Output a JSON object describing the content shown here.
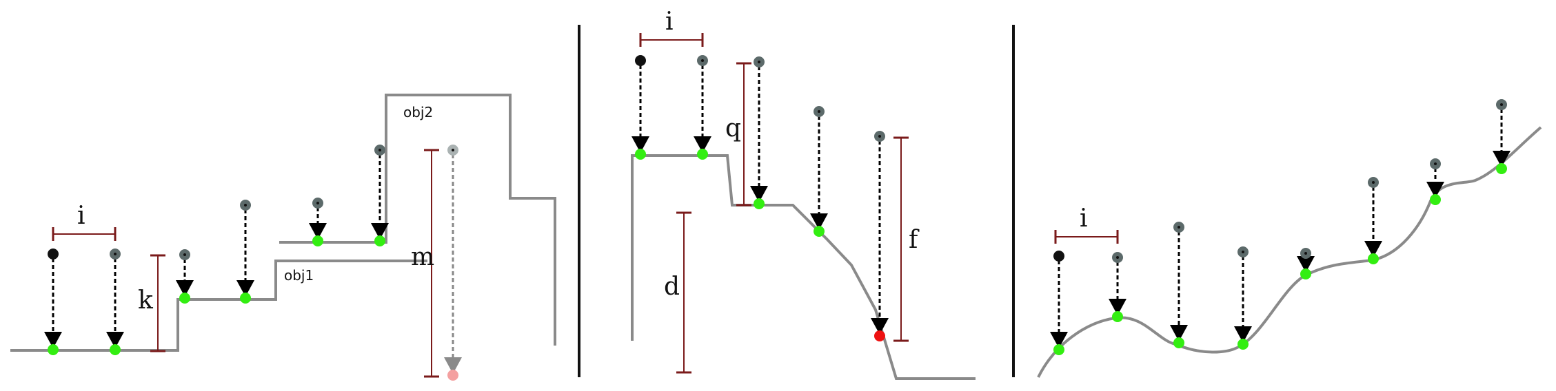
{
  "colors": {
    "terrain": "#8a8a8a",
    "dim_line": "#7a1a1a",
    "arrow": "#000000",
    "hit": "#33ee11",
    "hit_fail": "#ee1111",
    "hit_fail_faded": "#f4a0a0",
    "origin_start": "#111111",
    "origin": "#5c6a6a",
    "origin_faded": "#aab2b2",
    "divider": "#111111"
  },
  "panel1": {
    "labels": {
      "i": "i",
      "k": "k",
      "m": "m",
      "obj1": "obj1",
      "obj2": "obj2"
    }
  },
  "panel2": {
    "labels": {
      "i": "i",
      "q": "q",
      "d": "d",
      "f": "f"
    }
  },
  "panel3": {
    "labels": {
      "i": "i"
    }
  }
}
